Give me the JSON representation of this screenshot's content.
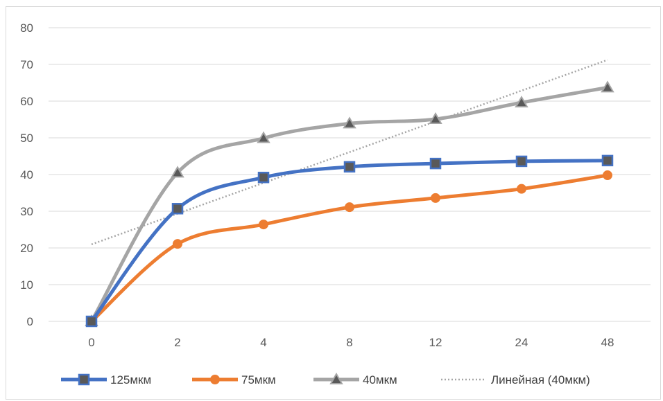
{
  "chart_data": {
    "type": "line",
    "categories": [
      "0",
      "2",
      "4",
      "8",
      "12",
      "24",
      "48"
    ],
    "ylim": [
      0,
      80
    ],
    "yticks": [
      0,
      10,
      20,
      30,
      40,
      50,
      60,
      70,
      80
    ],
    "grid": true,
    "legend_position": "bottom",
    "series": [
      {
        "name": "125мкм",
        "values": [
          0,
          30.7,
          39.2,
          42.1,
          43.0,
          43.6,
          43.8
        ],
        "color": "#4472c4",
        "marker": "square"
      },
      {
        "name": "75мкм",
        "values": [
          0,
          21.1,
          26.4,
          31.1,
          33.6,
          36.1,
          39.8
        ],
        "color": "#ed7d31",
        "marker": "circle"
      },
      {
        "name": "40мкм",
        "values": [
          0,
          40.5,
          49.9,
          53.9,
          55.1,
          59.6,
          63.7
        ],
        "color": "#a5a5a5",
        "marker": "triangle"
      }
    ],
    "trendline": {
      "name": "Линейная (40мкм)",
      "of_series": "40мкм",
      "type": "linear",
      "color": "#a5a5a5"
    }
  }
}
